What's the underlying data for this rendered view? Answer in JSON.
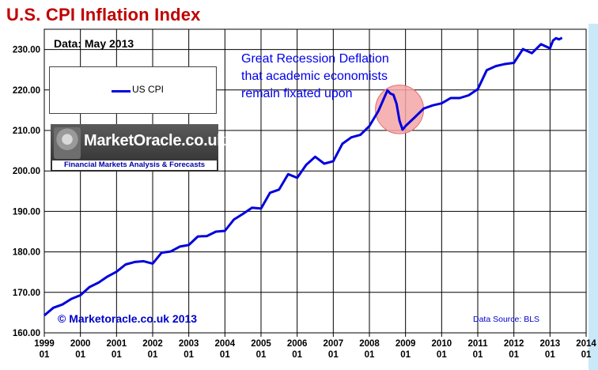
{
  "title": "U.S. CPI Inflation Index",
  "data_note": "Data: May 2013",
  "logo": {
    "name": "MarketOracle.co.uk",
    "tagline": "Financial Markets Analysis & Forecasts"
  },
  "annotation": {
    "lines": [
      "Great Recession Deflation",
      "that academic economists",
      "remain fixated upon"
    ],
    "highlight_color": "#f4a6a6",
    "highlight_center": {
      "x": "2008-11",
      "y": 215.2
    },
    "highlight_radius": {
      "x_months": 8,
      "y": 6.0
    }
  },
  "copyright": "© Marketoracle.co.uk 2013",
  "source": "Data Source: BLS",
  "colors": {
    "title": "#c00000",
    "line": "#0000dd",
    "annotation_text": "#0000ee",
    "right_band": "#c9e9f8"
  },
  "chart_data": {
    "type": "line",
    "title": "U.S. CPI Inflation Index",
    "xlabel": "",
    "ylabel": "",
    "ylim": [
      160,
      235
    ],
    "yticks": [
      160,
      170,
      180,
      190,
      200,
      210,
      220,
      230
    ],
    "ytick_labels": [
      "160.00",
      "170.00",
      "180.00",
      "190.00",
      "200.00",
      "210.00",
      "220.00",
      "230.00"
    ],
    "xlim": [
      "1999-01",
      "2014-01"
    ],
    "xtick_years": [
      "1999",
      "2000",
      "2001",
      "2002",
      "2003",
      "2004",
      "2005",
      "2006",
      "2007",
      "2008",
      "2009",
      "2010",
      "2011",
      "2012",
      "2013",
      "2014"
    ],
    "xtick_months": [
      "01",
      "01",
      "01",
      "01",
      "01",
      "01",
      "01",
      "01",
      "01",
      "01",
      "01",
      "01",
      "01",
      "01",
      "01",
      "01"
    ],
    "grid": true,
    "legend": {
      "position": "top-left",
      "entries": [
        "US CPI"
      ]
    },
    "series": [
      {
        "name": "US CPI",
        "x": [
          "1999-01",
          "1999-04",
          "1999-07",
          "1999-10",
          "2000-01",
          "2000-04",
          "2000-07",
          "2000-10",
          "2001-01",
          "2001-04",
          "2001-07",
          "2001-10",
          "2002-01",
          "2002-04",
          "2002-07",
          "2002-10",
          "2003-01",
          "2003-04",
          "2003-07",
          "2003-10",
          "2004-01",
          "2004-04",
          "2004-07",
          "2004-10",
          "2005-01",
          "2005-04",
          "2005-07",
          "2005-10",
          "2006-01",
          "2006-04",
          "2006-07",
          "2006-10",
          "2007-01",
          "2007-04",
          "2007-07",
          "2007-10",
          "2008-01",
          "2008-04",
          "2008-07",
          "2008-08",
          "2008-09",
          "2008-10",
          "2008-11",
          "2008-12",
          "2009-01",
          "2009-04",
          "2009-07",
          "2009-10",
          "2010-01",
          "2010-04",
          "2010-07",
          "2010-10",
          "2011-01",
          "2011-04",
          "2011-07",
          "2011-10",
          "2012-01",
          "2012-04",
          "2012-07",
          "2012-10",
          "2013-01",
          "2013-02",
          "2013-03",
          "2013-04",
          "2013-05"
        ],
        "values": [
          164.3,
          166.2,
          167.0,
          168.4,
          169.3,
          171.3,
          172.4,
          173.9,
          175.1,
          176.9,
          177.5,
          177.7,
          177.1,
          179.8,
          180.1,
          181.3,
          181.7,
          183.8,
          183.9,
          185.0,
          185.2,
          188.0,
          189.4,
          190.9,
          190.7,
          194.6,
          195.4,
          199.2,
          198.3,
          201.5,
          203.5,
          201.8,
          202.4,
          206.7,
          208.3,
          208.9,
          211.1,
          214.8,
          219.9,
          219.1,
          218.8,
          216.6,
          212.4,
          210.2,
          211.1,
          213.2,
          215.4,
          216.2,
          216.7,
          218.0,
          218.0,
          218.7,
          220.2,
          224.9,
          225.9,
          226.4,
          226.7,
          230.1,
          229.1,
          231.3,
          230.3,
          232.2,
          232.8,
          232.5,
          232.9
        ]
      }
    ]
  }
}
